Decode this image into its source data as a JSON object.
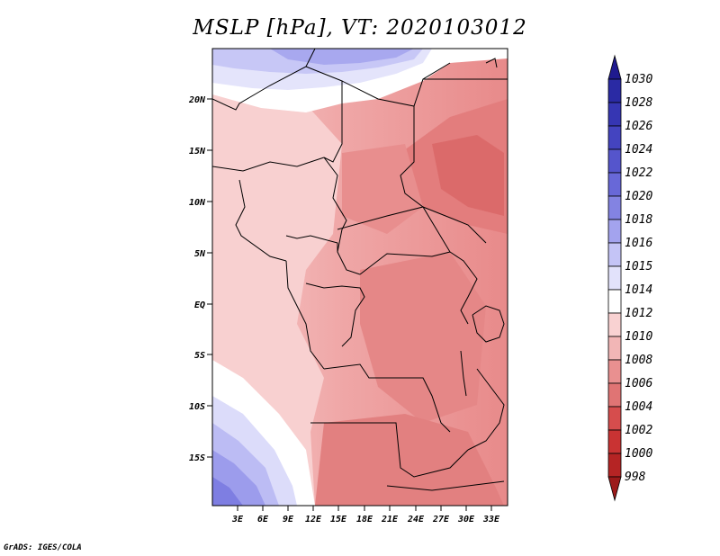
{
  "title": "MSLP [hPa], VT: 2020103012",
  "credit": "GrADS: IGES/COLA",
  "map": {
    "variable": "Mean sea level pressure",
    "units": "hPa",
    "lat_labels": [
      "20N",
      "15N",
      "10N",
      "5N",
      "EQ",
      "5S",
      "10S",
      "15S"
    ],
    "lon_labels": [
      "3E",
      "6E",
      "9E",
      "12E",
      "15E",
      "18E",
      "21E",
      "24E",
      "27E",
      "30E",
      "33E"
    ]
  },
  "colorbar": {
    "levels": [
      "1030",
      "1028",
      "1026",
      "1024",
      "1022",
      "1020",
      "1018",
      "1016",
      "1015",
      "1014",
      "1012",
      "1010",
      "1008",
      "1006",
      "1004",
      "1002",
      "1000",
      "998"
    ],
    "colors": [
      "#1f1a8f",
      "#2a2aa4",
      "#3636b3",
      "#4444c0",
      "#5555cc",
      "#6868d8",
      "#8383e2",
      "#a3a3ee",
      "#c4c4f6",
      "#e2e2fb",
      "#ffffff",
      "#f9d2d2",
      "#f2b6b6",
      "#e99090",
      "#e07474",
      "#d64d4d",
      "#c93333",
      "#b52424",
      "#9c1a1a"
    ]
  }
}
